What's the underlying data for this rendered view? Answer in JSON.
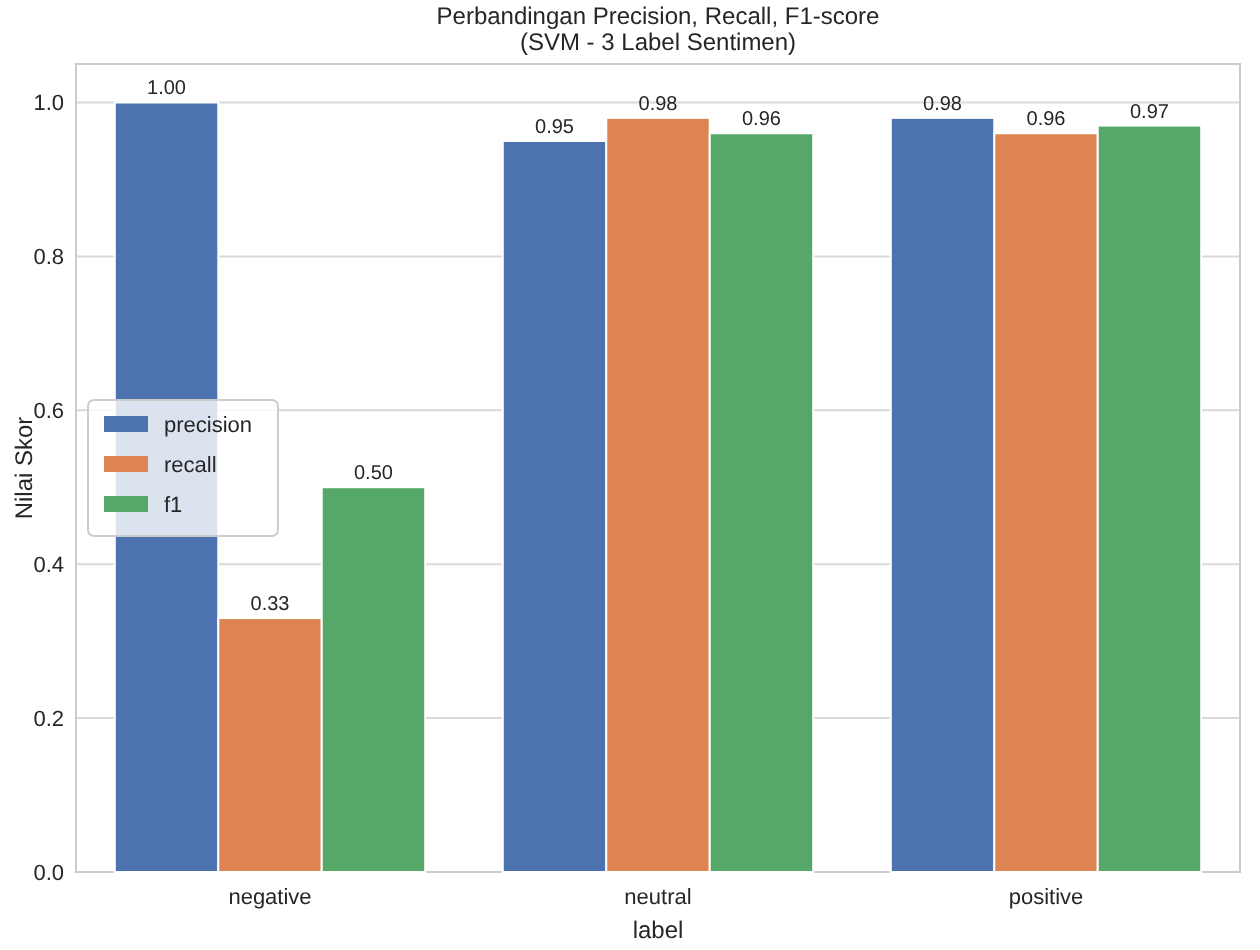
{
  "chart_data": {
    "type": "bar",
    "title": "Perbandingan Precision, Recall, F1-score\n(SVM - 3 Label Sentimen)",
    "xlabel": "label",
    "ylabel": "Nilai Skor",
    "categories": [
      "negative",
      "neutral",
      "positive"
    ],
    "series": [
      {
        "name": "precision",
        "color": "#4c72b0",
        "values": [
          1.0,
          0.95,
          0.98
        ],
        "value_labels": [
          "1.00",
          "0.95",
          "0.98"
        ]
      },
      {
        "name": "recall",
        "color": "#dd8452",
        "values": [
          0.33,
          0.98,
          0.96
        ],
        "value_labels": [
          "0.33",
          "0.98",
          "0.96"
        ]
      },
      {
        "name": "f1",
        "color": "#55a868",
        "values": [
          0.5,
          0.96,
          0.97
        ],
        "value_labels": [
          "0.50",
          "0.96",
          "0.97"
        ]
      }
    ],
    "ylim": [
      0,
      1.05
    ],
    "yticks": [
      {
        "value": 0,
        "label": "0.0"
      },
      {
        "value": 0.2,
        "label": "0.2"
      },
      {
        "value": 0.4,
        "label": "0.4"
      },
      {
        "value": 0.6,
        "label": "0.6"
      },
      {
        "value": 0.8,
        "label": "0.8"
      },
      {
        "value": 1,
        "label": "1.0"
      }
    ],
    "grid": "y",
    "legend": "center left"
  }
}
